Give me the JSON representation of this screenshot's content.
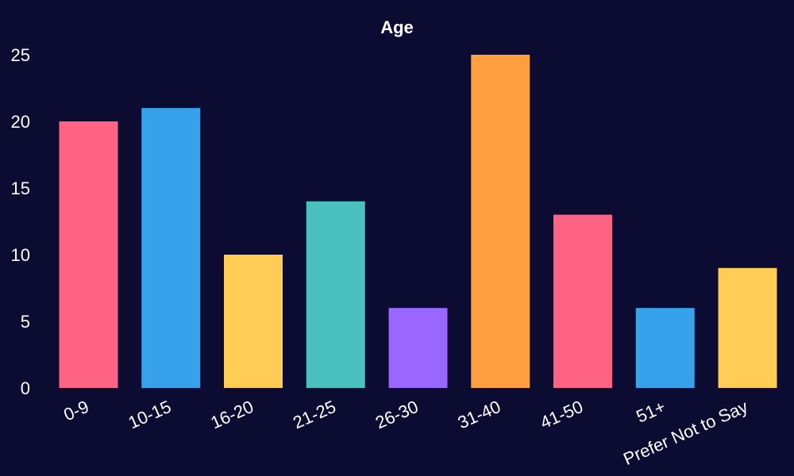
{
  "chart_data": {
    "type": "bar",
    "title": "Age",
    "xlabel": "",
    "ylabel": "",
    "categories": [
      "0-9",
      "10-15",
      "16-20",
      "21-25",
      "26-30",
      "31-40",
      "41-50",
      "51+",
      "Prefer Not to Say"
    ],
    "values": [
      20,
      21,
      10,
      14,
      6,
      25,
      13,
      6,
      9
    ],
    "ylim": [
      0,
      25
    ],
    "yticks": [
      0,
      5,
      10,
      15,
      20,
      25
    ],
    "grid": false,
    "legend": "none",
    "colors": [
      "#ff6384",
      "#36a2eb",
      "#ffcd56",
      "#4bc0c0",
      "#9966ff",
      "#ff9f40",
      "#ff6384",
      "#36a2eb",
      "#ffcd56"
    ],
    "background": "#0c0c33",
    "text_color": "#ffffff"
  }
}
